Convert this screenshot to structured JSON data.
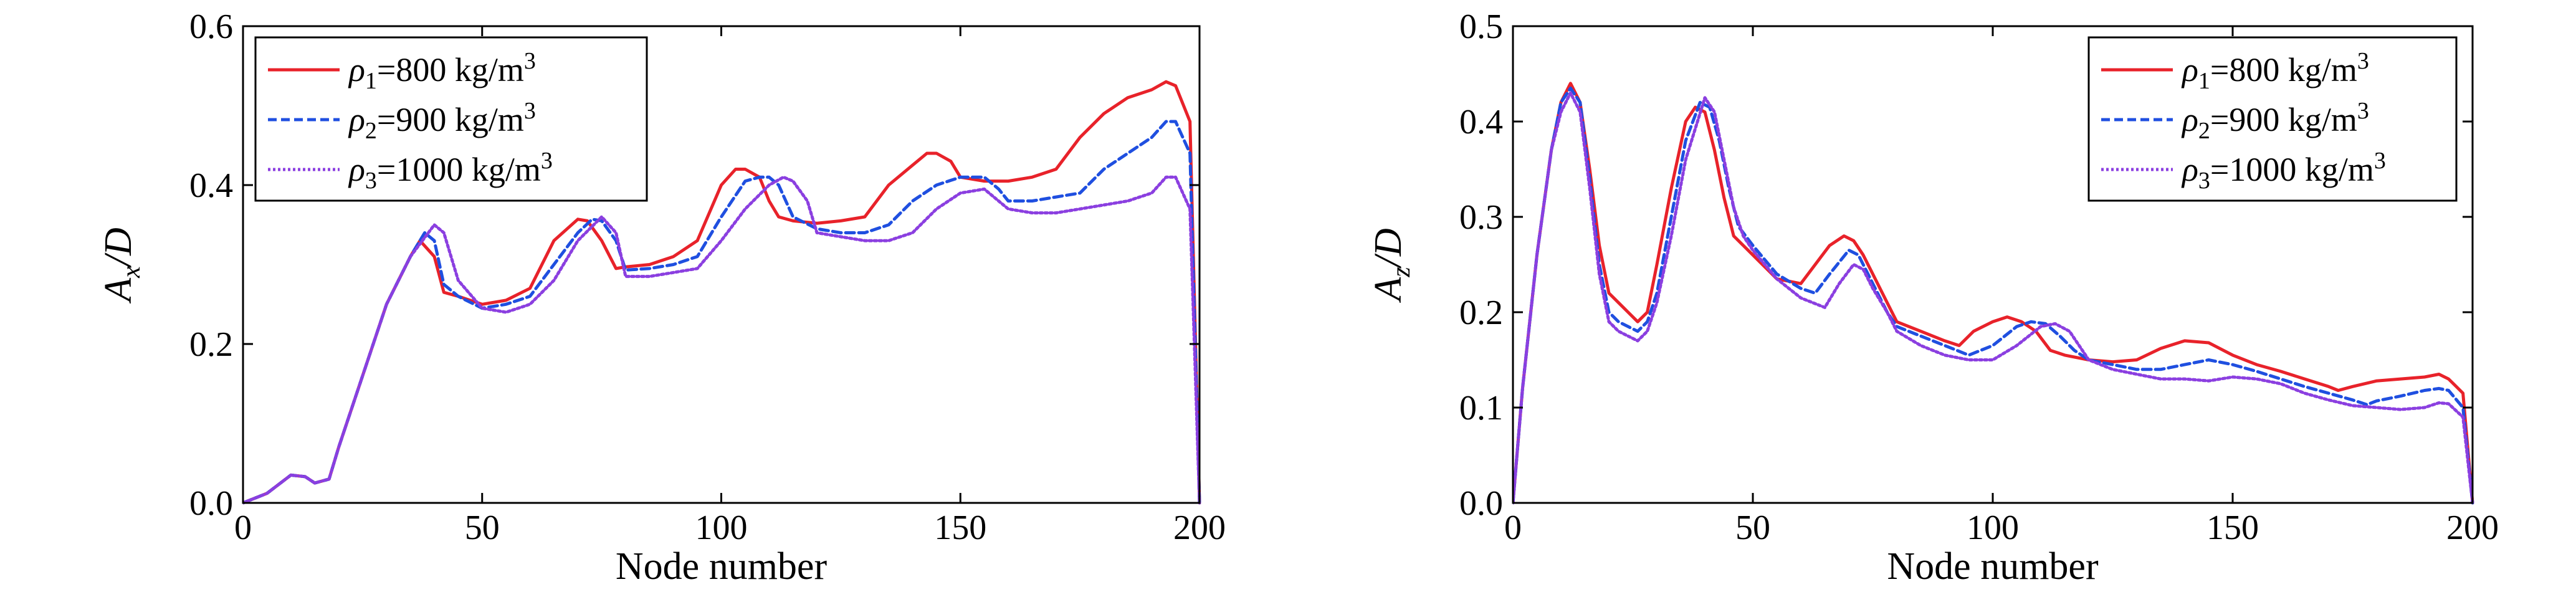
{
  "chart_data": [
    {
      "type": "line",
      "xlabel": "Node number",
      "ylabel_main": "A",
      "ylabel_sub": "x",
      "ylabel_tail": "/D",
      "xlim": [
        0,
        200
      ],
      "ylim": [
        0,
        0.6
      ],
      "xticks": [
        "0",
        "50",
        "100",
        "150",
        "200"
      ],
      "xtick_values": [
        0,
        50,
        100,
        150,
        200
      ],
      "yticks": [
        "0.0",
        "0.2",
        "0.4",
        "0.6"
      ],
      "ytick_values": [
        0,
        0.2,
        0.4,
        0.6
      ],
      "legend_position": "top-left",
      "series": [
        {
          "label_symbol": "ρ",
          "label_sub": "1",
          "label_text": "=800 kg/m",
          "label_sup": "3",
          "color": "#e8222a",
          "dash": "",
          "x": [
            0,
            5,
            10,
            13,
            15,
            18,
            20,
            25,
            30,
            35,
            37,
            40,
            42,
            45,
            50,
            55,
            60,
            65,
            70,
            72,
            75,
            78,
            80,
            85,
            90,
            95,
            100,
            103,
            105,
            108,
            110,
            112,
            115,
            120,
            125,
            130,
            135,
            140,
            143,
            145,
            148,
            150,
            155,
            160,
            165,
            170,
            175,
            180,
            185,
            190,
            193,
            195,
            198,
            200
          ],
          "y": [
            0,
            0.012,
            0.035,
            0.033,
            0.025,
            0.03,
            0.07,
            0.16,
            0.25,
            0.31,
            0.33,
            0.31,
            0.265,
            0.26,
            0.25,
            0.255,
            0.27,
            0.33,
            0.357,
            0.355,
            0.33,
            0.295,
            0.297,
            0.3,
            0.31,
            0.33,
            0.4,
            0.42,
            0.42,
            0.41,
            0.38,
            0.36,
            0.355,
            0.352,
            0.355,
            0.36,
            0.4,
            0.425,
            0.44,
            0.44,
            0.43,
            0.41,
            0.405,
            0.405,
            0.41,
            0.42,
            0.46,
            0.49,
            0.51,
            0.52,
            0.53,
            0.525,
            0.48,
            0
          ]
        },
        {
          "label_symbol": "ρ",
          "label_sub": "2",
          "label_text": "=900 kg/m",
          "label_sup": "3",
          "color": "#1f4fe0",
          "dash": "14,7",
          "x": [
            0,
            5,
            10,
            13,
            15,
            18,
            20,
            25,
            30,
            35,
            38,
            40,
            42,
            45,
            50,
            55,
            60,
            65,
            70,
            73,
            75,
            78,
            80,
            85,
            90,
            95,
            100,
            105,
            108,
            110,
            112,
            115,
            120,
            125,
            130,
            135,
            140,
            145,
            150,
            155,
            158,
            160,
            165,
            170,
            175,
            180,
            185,
            190,
            193,
            195,
            198,
            200
          ],
          "y": [
            0,
            0.012,
            0.035,
            0.033,
            0.025,
            0.03,
            0.07,
            0.16,
            0.25,
            0.31,
            0.34,
            0.33,
            0.275,
            0.26,
            0.245,
            0.25,
            0.26,
            0.3,
            0.34,
            0.357,
            0.355,
            0.33,
            0.293,
            0.295,
            0.3,
            0.31,
            0.36,
            0.405,
            0.41,
            0.41,
            0.4,
            0.36,
            0.345,
            0.34,
            0.34,
            0.35,
            0.38,
            0.4,
            0.41,
            0.41,
            0.395,
            0.38,
            0.38,
            0.385,
            0.39,
            0.42,
            0.44,
            0.46,
            0.48,
            0.48,
            0.44,
            0
          ]
        },
        {
          "label_symbol": "ρ",
          "label_sub": "3",
          "label_text": "=1000 kg/m",
          "label_sup": "3",
          "color": "#8b3fe0",
          "dash": "4,4",
          "x": [
            0,
            5,
            10,
            13,
            15,
            18,
            20,
            25,
            30,
            35,
            40,
            42,
            45,
            50,
            55,
            60,
            65,
            70,
            75,
            78,
            80,
            85,
            90,
            95,
            100,
            105,
            110,
            113,
            115,
            118,
            120,
            125,
            130,
            135,
            140,
            145,
            150,
            155,
            160,
            165,
            170,
            175,
            180,
            185,
            190,
            193,
            195,
            198,
            200
          ],
          "y": [
            0,
            0.012,
            0.035,
            0.033,
            0.025,
            0.03,
            0.07,
            0.16,
            0.25,
            0.31,
            0.35,
            0.34,
            0.28,
            0.245,
            0.24,
            0.25,
            0.28,
            0.33,
            0.36,
            0.34,
            0.285,
            0.285,
            0.29,
            0.295,
            0.33,
            0.37,
            0.4,
            0.41,
            0.405,
            0.38,
            0.34,
            0.335,
            0.33,
            0.33,
            0.34,
            0.37,
            0.39,
            0.395,
            0.37,
            0.365,
            0.365,
            0.37,
            0.375,
            0.38,
            0.39,
            0.41,
            0.41,
            0.37,
            0
          ]
        }
      ]
    },
    {
      "type": "line",
      "xlabel": "Node number",
      "ylabel_main": "A",
      "ylabel_sub": "z",
      "ylabel_tail": "/D",
      "xlim": [
        0,
        200
      ],
      "ylim": [
        0,
        0.5
      ],
      "xticks": [
        "0",
        "50",
        "100",
        "150",
        "200"
      ],
      "xtick_values": [
        0,
        50,
        100,
        150,
        200
      ],
      "yticks": [
        "0.0",
        "0.1",
        "0.2",
        "0.3",
        "0.4",
        "0.5"
      ],
      "ytick_values": [
        0,
        0.1,
        0.2,
        0.3,
        0.4,
        0.5
      ],
      "legend_position": "top-right",
      "series": [
        {
          "label_symbol": "ρ",
          "label_sub": "1",
          "label_text": "=800 kg/m",
          "label_sup": "3",
          "color": "#e8222a",
          "dash": "",
          "x": [
            0,
            2,
            5,
            8,
            10,
            12,
            14,
            16,
            18,
            20,
            22,
            24,
            26,
            28,
            30,
            33,
            36,
            38,
            40,
            42,
            44,
            46,
            48,
            50,
            55,
            60,
            63,
            66,
            69,
            71,
            73,
            75,
            78,
            80,
            85,
            90,
            93,
            96,
            100,
            103,
            106,
            109,
            112,
            115,
            120,
            125,
            130,
            135,
            140,
            145,
            150,
            155,
            160,
            165,
            170,
            172,
            175,
            180,
            185,
            190,
            193,
            195,
            198,
            200
          ],
          "y": [
            0,
            0.12,
            0.26,
            0.37,
            0.42,
            0.44,
            0.42,
            0.35,
            0.27,
            0.22,
            0.21,
            0.2,
            0.19,
            0.2,
            0.25,
            0.33,
            0.4,
            0.415,
            0.41,
            0.37,
            0.32,
            0.28,
            0.27,
            0.26,
            0.235,
            0.23,
            0.25,
            0.27,
            0.28,
            0.275,
            0.26,
            0.24,
            0.21,
            0.19,
            0.18,
            0.17,
            0.165,
            0.18,
            0.19,
            0.195,
            0.19,
            0.18,
            0.16,
            0.155,
            0.15,
            0.148,
            0.15,
            0.162,
            0.17,
            0.168,
            0.155,
            0.145,
            0.138,
            0.13,
            0.122,
            0.118,
            0.122,
            0.128,
            0.13,
            0.132,
            0.135,
            0.13,
            0.115,
            0
          ]
        },
        {
          "label_symbol": "ρ",
          "label_sub": "2",
          "label_text": "=900 kg/m",
          "label_sup": "3",
          "color": "#1f4fe0",
          "dash": "14,7",
          "x": [
            0,
            2,
            5,
            8,
            10,
            12,
            14,
            16,
            18,
            20,
            22,
            24,
            26,
            28,
            30,
            33,
            36,
            39,
            41,
            43,
            45,
            47,
            50,
            55,
            60,
            63,
            66,
            70,
            72,
            74,
            76,
            78,
            80,
            85,
            90,
            95,
            100,
            105,
            108,
            111,
            114,
            117,
            120,
            125,
            130,
            135,
            140,
            145,
            150,
            155,
            160,
            165,
            170,
            175,
            178,
            180,
            185,
            190,
            193,
            195,
            198,
            200
          ],
          "y": [
            0,
            0.12,
            0.26,
            0.37,
            0.42,
            0.435,
            0.42,
            0.34,
            0.25,
            0.2,
            0.19,
            0.185,
            0.18,
            0.19,
            0.22,
            0.3,
            0.38,
            0.42,
            0.415,
            0.38,
            0.33,
            0.29,
            0.27,
            0.24,
            0.225,
            0.22,
            0.24,
            0.265,
            0.26,
            0.24,
            0.22,
            0.2,
            0.185,
            0.175,
            0.165,
            0.155,
            0.165,
            0.185,
            0.19,
            0.188,
            0.175,
            0.16,
            0.15,
            0.145,
            0.14,
            0.14,
            0.145,
            0.15,
            0.145,
            0.138,
            0.13,
            0.122,
            0.115,
            0.108,
            0.103,
            0.107,
            0.112,
            0.118,
            0.12,
            0.118,
            0.1,
            0
          ]
        },
        {
          "label_symbol": "ρ",
          "label_sub": "3",
          "label_text": "=1000 kg/m",
          "label_sup": "3",
          "color": "#8b3fe0",
          "dash": "4,4",
          "x": [
            0,
            2,
            5,
            8,
            10,
            12,
            14,
            16,
            18,
            20,
            22,
            24,
            26,
            28,
            30,
            33,
            36,
            40,
            42,
            44,
            46,
            48,
            50,
            55,
            60,
            65,
            68,
            71,
            73,
            75,
            78,
            80,
            85,
            90,
            95,
            100,
            105,
            110,
            113,
            116,
            118,
            120,
            125,
            130,
            135,
            140,
            145,
            150,
            155,
            160,
            165,
            170,
            175,
            180,
            185,
            190,
            193,
            195,
            198,
            200
          ],
          "y": [
            0,
            0.12,
            0.26,
            0.37,
            0.41,
            0.43,
            0.41,
            0.33,
            0.24,
            0.19,
            0.18,
            0.175,
            0.17,
            0.18,
            0.21,
            0.28,
            0.36,
            0.425,
            0.41,
            0.36,
            0.31,
            0.28,
            0.265,
            0.235,
            0.215,
            0.205,
            0.23,
            0.25,
            0.245,
            0.225,
            0.2,
            0.18,
            0.165,
            0.155,
            0.15,
            0.15,
            0.165,
            0.185,
            0.188,
            0.18,
            0.165,
            0.15,
            0.14,
            0.135,
            0.13,
            0.13,
            0.128,
            0.132,
            0.13,
            0.125,
            0.115,
            0.108,
            0.102,
            0.1,
            0.098,
            0.1,
            0.105,
            0.104,
            0.09,
            0
          ]
        }
      ]
    }
  ]
}
